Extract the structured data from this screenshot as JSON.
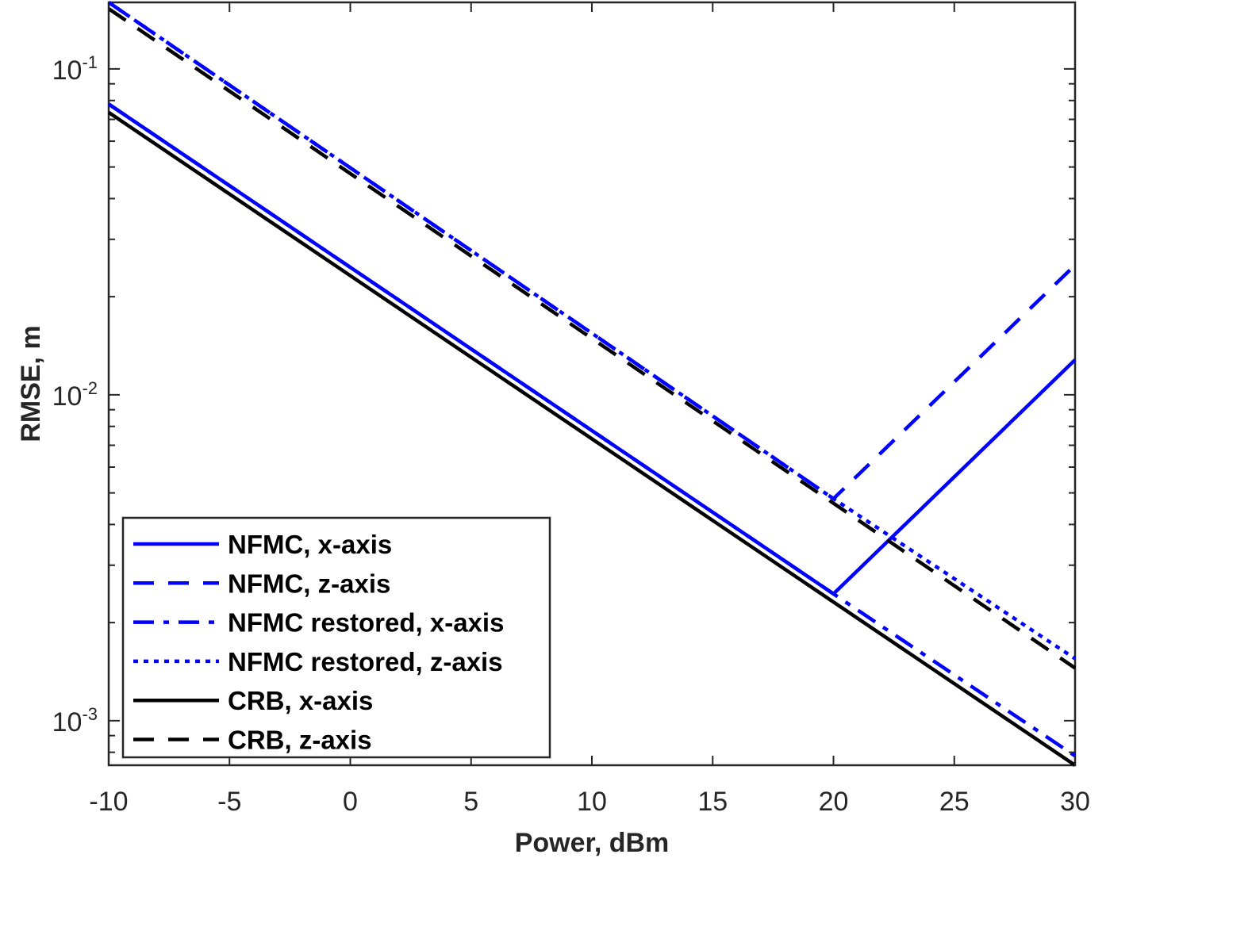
{
  "chart_data": {
    "type": "line",
    "xlabel": "Power, dBm",
    "ylabel": "RMSE, m",
    "xlim": [
      -10,
      30
    ],
    "ylim": [
      0.00073,
      0.16
    ],
    "yscale": "log",
    "grid": false,
    "legend_position": "bottom-left",
    "x_ticks": [
      -10,
      -5,
      0,
      5,
      10,
      15,
      20,
      25,
      30
    ],
    "x_tick_labels": [
      "-10",
      "-5",
      "0",
      "5",
      "10",
      "15",
      "20",
      "25",
      "30"
    ],
    "y_ticks": [
      {
        "value": 0.1,
        "base": "10",
        "exp": "-1"
      },
      {
        "value": 0.01,
        "base": "10",
        "exp": "-2"
      },
      {
        "value": 0.001,
        "base": "10",
        "exp": "-3"
      }
    ],
    "series": [
      {
        "name": "NFMC, x-axis",
        "color": "#0000ff",
        "dash": "solid",
        "x": [
          -10,
          20,
          30
        ],
        "y": [
          0.078,
          0.00245,
          0.0128
        ]
      },
      {
        "name": "NFMC, z-axis",
        "color": "#0000ff",
        "dash": "dashed",
        "x": [
          -10,
          20,
          30
        ],
        "y": [
          0.16,
          0.0048,
          0.025
        ]
      },
      {
        "name": "NFMC restored, x-axis",
        "color": "#0000ff",
        "dash": "dashdot",
        "x": [
          -10,
          20,
          30
        ],
        "y": [
          0.078,
          0.00245,
          0.00078
        ]
      },
      {
        "name": "NFMC restored, z-axis",
        "color": "#0000ff",
        "dash": "dotted",
        "x": [
          -10,
          20,
          30
        ],
        "y": [
          0.16,
          0.0048,
          0.00155
        ]
      },
      {
        "name": "CRB, x-axis",
        "color": "#000000",
        "dash": "solid",
        "x": [
          -10,
          30
        ],
        "y": [
          0.0735,
          0.00073
        ]
      },
      {
        "name": "CRB, z-axis",
        "color": "#000000",
        "dash": "dashed",
        "x": [
          -10,
          30
        ],
        "y": [
          0.153,
          0.00145
        ]
      }
    ]
  }
}
